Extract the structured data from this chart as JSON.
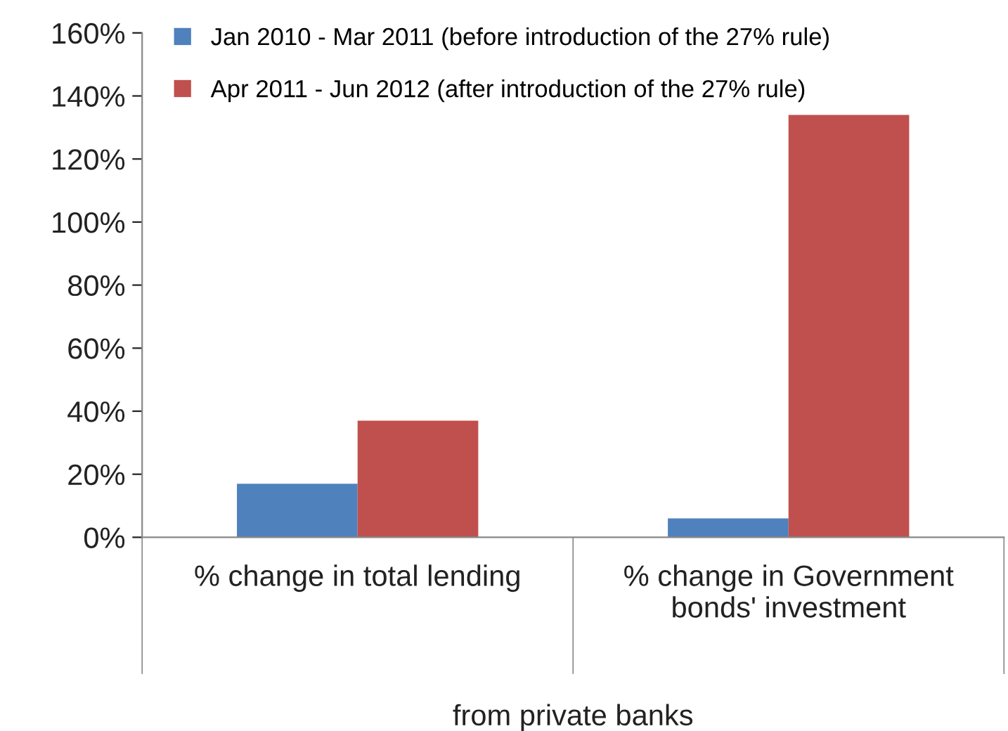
{
  "chart_data": {
    "type": "bar",
    "xlabel": "from private banks",
    "categories": [
      "% change in total lending",
      "% change in Government\nbonds' investment"
    ],
    "series": [
      {
        "name": "Jan 2010 - Mar 2011 (before introduction of the 27% rule)",
        "color": "#4f81bd",
        "values": [
          17,
          6
        ]
      },
      {
        "name": "Apr 2011 - Jun 2012 (after introduction of the 27% rule)",
        "color": "#c0504d",
        "values": [
          37,
          134
        ]
      }
    ],
    "ylim": [
      0,
      160
    ],
    "yticks": [
      {
        "value": 0,
        "label": "0%"
      },
      {
        "value": 20,
        "label": "20%"
      },
      {
        "value": 40,
        "label": "40%"
      },
      {
        "value": 60,
        "label": "60%"
      },
      {
        "value": 80,
        "label": "80%"
      },
      {
        "value": 100,
        "label": "100%"
      },
      {
        "value": 120,
        "label": "120%"
      },
      {
        "value": 140,
        "label": "140%"
      },
      {
        "value": 160,
        "label": "160%"
      }
    ],
    "grid": false,
    "legend": "top left"
  }
}
